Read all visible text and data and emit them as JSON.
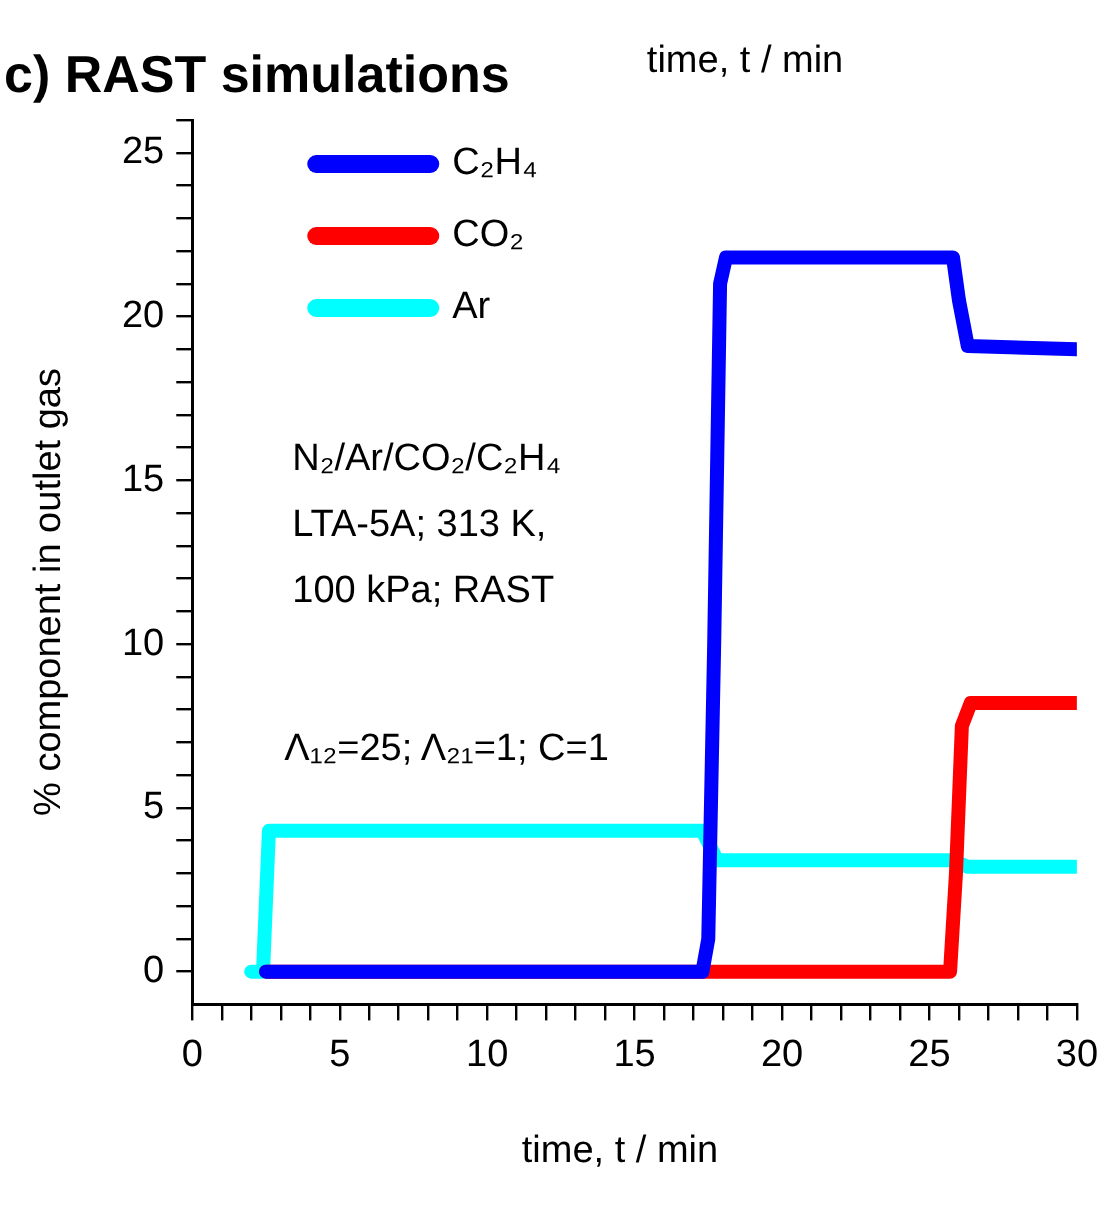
{
  "chart_data": {
    "type": "line",
    "title": "c) RAST simulations",
    "xlabel": "time, t / min",
    "ylabel": "% component in outlet gas",
    "annotations": [
      "time, t / min",
      "N₂/Ar/CO₂/C₂H₄",
      "LTA-5A; 313 K,",
      "100 kPa; RAST",
      "Λ₁₂=25; Λ₂₁=1; C=1"
    ],
    "xlim": [
      0,
      30
    ],
    "ylim": [
      -1,
      26
    ],
    "xticks": [
      {
        "value": 0,
        "label": "0"
      },
      {
        "value": 1,
        "label": null
      },
      {
        "value": 2,
        "label": null
      },
      {
        "value": 3,
        "label": null
      },
      {
        "value": 4,
        "label": null
      },
      {
        "value": 5,
        "label": "5"
      },
      {
        "value": 6,
        "label": null
      },
      {
        "value": 7,
        "label": null
      },
      {
        "value": 8,
        "label": null
      },
      {
        "value": 9,
        "label": null
      },
      {
        "value": 10,
        "label": "10"
      },
      {
        "value": 11,
        "label": null
      },
      {
        "value": 12,
        "label": null
      },
      {
        "value": 13,
        "label": null
      },
      {
        "value": 14,
        "label": null
      },
      {
        "value": 15,
        "label": "15"
      },
      {
        "value": 16,
        "label": null
      },
      {
        "value": 17,
        "label": null
      },
      {
        "value": 18,
        "label": null
      },
      {
        "value": 19,
        "label": null
      },
      {
        "value": 20,
        "label": "20"
      },
      {
        "value": 21,
        "label": null
      },
      {
        "value": 22,
        "label": null
      },
      {
        "value": 23,
        "label": null
      },
      {
        "value": 24,
        "label": null
      },
      {
        "value": 25,
        "label": "25"
      },
      {
        "value": 26,
        "label": null
      },
      {
        "value": 27,
        "label": null
      },
      {
        "value": 28,
        "label": null
      },
      {
        "value": 29,
        "label": null
      },
      {
        "value": 30,
        "label": "30"
      }
    ],
    "yticks": [
      {
        "value": 0,
        "label": "0"
      },
      {
        "value": 1,
        "label": null
      },
      {
        "value": 2,
        "label": null
      },
      {
        "value": 3,
        "label": null
      },
      {
        "value": 4,
        "label": null
      },
      {
        "value": 5,
        "label": "5"
      },
      {
        "value": 6,
        "label": null
      },
      {
        "value": 7,
        "label": null
      },
      {
        "value": 8,
        "label": null
      },
      {
        "value": 9,
        "label": null
      },
      {
        "value": 10,
        "label": "10"
      },
      {
        "value": 11,
        "label": null
      },
      {
        "value": 12,
        "label": null
      },
      {
        "value": 13,
        "label": null
      },
      {
        "value": 14,
        "label": null
      },
      {
        "value": 15,
        "label": "15"
      },
      {
        "value": 16,
        "label": null
      },
      {
        "value": 17,
        "label": null
      },
      {
        "value": 18,
        "label": null
      },
      {
        "value": 19,
        "label": null
      },
      {
        "value": 20,
        "label": "20"
      },
      {
        "value": 21,
        "label": null
      },
      {
        "value": 22,
        "label": null
      },
      {
        "value": 23,
        "label": null
      },
      {
        "value": 24,
        "label": null
      },
      {
        "value": 25,
        "label": "25"
      },
      {
        "value": 26,
        "label": null
      }
    ],
    "grid": false,
    "legend": "top left",
    "marker": "none",
    "line_style": "solid",
    "series": [
      {
        "name": "C₂H₄",
        "color": "#0000ff",
        "x": [
          2.5,
          17.3,
          17.5,
          17.7,
          17.9,
          18.1,
          25.8,
          26.0,
          26.3,
          30
        ],
        "values": [
          0,
          0,
          1,
          10,
          21,
          21.8,
          21.8,
          20.5,
          19.1,
          19.0
        ]
      },
      {
        "name": "CO₂",
        "color": "#ff0000",
        "x": [
          2.5,
          25.7,
          25.9,
          26.1,
          26.4,
          30
        ],
        "values": [
          0,
          0,
          3,
          7.5,
          8.2,
          8.2
        ]
      },
      {
        "name": "Ar",
        "color": "#00ffff",
        "x": [
          2.0,
          2.4,
          2.6,
          17.3,
          17.8,
          25.8,
          26.3,
          30
        ],
        "values": [
          0,
          0,
          4.3,
          4.3,
          3.4,
          3.4,
          3.2,
          3.2
        ]
      }
    ]
  }
}
